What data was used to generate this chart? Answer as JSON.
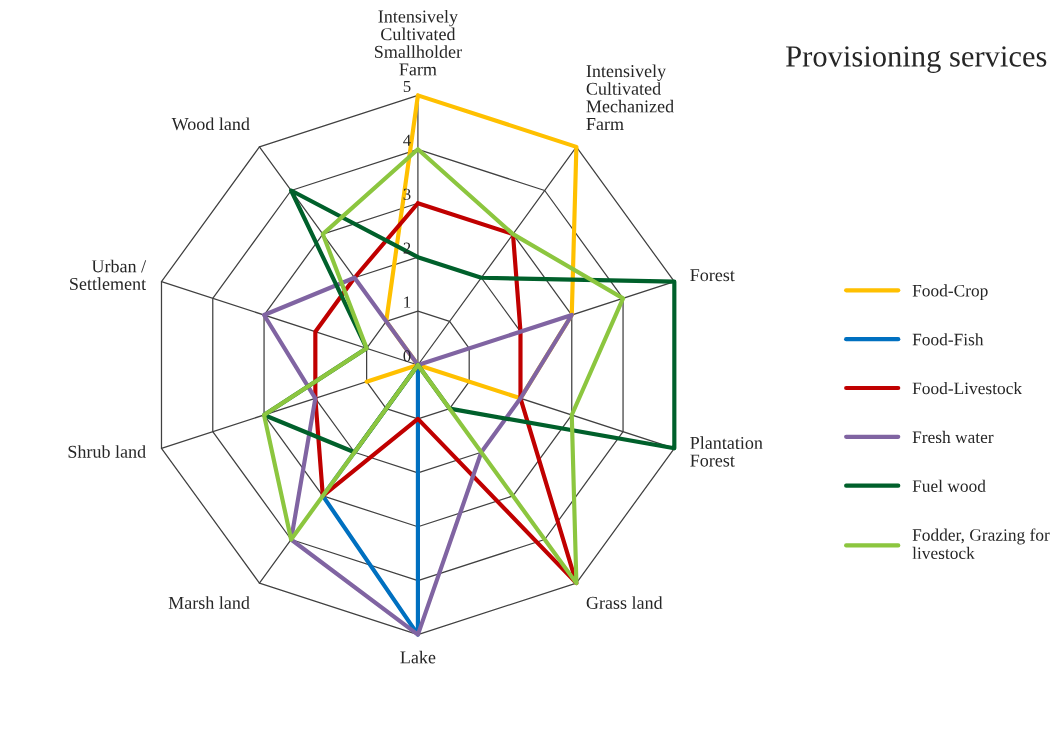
{
  "chart_data": {
    "type": "radar",
    "title": "Provisioning services",
    "categories": [
      "Intensively\nCultivated\nSmallholder\nFarm",
      "Intensively\nCultivated\nMechanized\nFarm",
      "Forest",
      "Plantation\nForest",
      "Grass land",
      "Lake",
      "Marsh land",
      "Shrub land",
      "Urban /\nSettlement",
      "Wood land"
    ],
    "series": [
      {
        "name": "Food-Crop",
        "color": "#ffc000",
        "values": [
          5,
          5,
          3,
          2,
          0,
          0,
          0,
          1,
          0,
          1
        ]
      },
      {
        "name": "Food-Fish",
        "color": "#0070c0",
        "values": [
          0,
          0,
          0,
          0,
          0,
          5,
          3,
          0,
          0,
          0
        ]
      },
      {
        "name": "Food-Livestock",
        "color": "#c00000",
        "values": [
          3,
          3,
          2,
          2,
          5,
          1,
          3,
          2,
          2,
          2
        ]
      },
      {
        "name": "Fresh water",
        "color": "#8064a2",
        "values": [
          0,
          0,
          3,
          2,
          2,
          5,
          4,
          2,
          3,
          2
        ]
      },
      {
        "name": "Fuel wood",
        "color": "#00602b",
        "values": [
          2,
          2,
          5,
          5,
          1,
          0,
          2,
          3,
          1,
          4
        ]
      },
      {
        "name": "Fodder, Grazing for livestock",
        "color": "#8cc63f",
        "values": [
          4,
          3,
          4,
          3,
          5,
          0,
          4,
          3,
          1,
          3
        ]
      }
    ],
    "ylim": [
      0,
      5
    ],
    "yticks": [
      0,
      1,
      2,
      3,
      4,
      5
    ],
    "grid": true,
    "legend": "right"
  }
}
